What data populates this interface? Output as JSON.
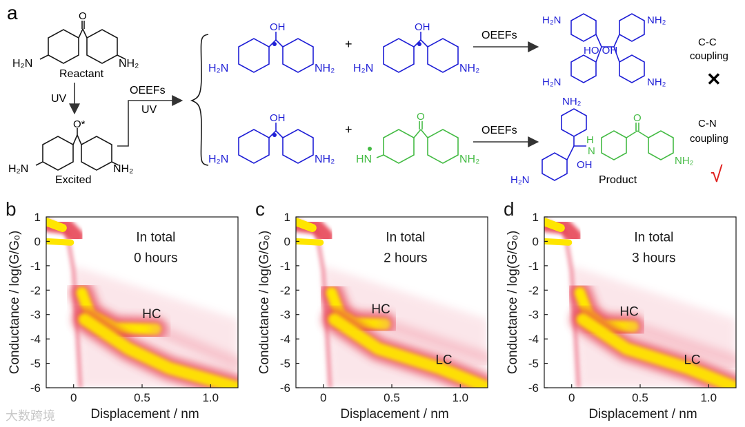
{
  "scheme": {
    "panel_label": "a",
    "reactant": {
      "left_group": "H₂N",
      "right_group": "NH₂",
      "carbonyl": "O",
      "caption": "Reactant"
    },
    "uv_step": "UV",
    "excited": {
      "left_group": "H₂N",
      "right_group": "NH₂",
      "carbonyl": "O*",
      "caption": "Excited"
    },
    "split": {
      "top": "OEEFs",
      "bottom": "UV"
    },
    "radical": {
      "left_group": "H₂N",
      "right_group": "NH₂",
      "oh": "OH"
    },
    "n_radical": {
      "left_group": "HN",
      "right_group": "NH₂",
      "carbonyl": "O"
    },
    "plus": "+",
    "oeefs": "OEEFs",
    "cc_dimer": {
      "top_left": "H₂N",
      "top_right": "NH₂",
      "bottom_left": "H₂N",
      "bottom_right": "NH₂",
      "oh": "HO OH"
    },
    "cn_product": {
      "top": "NH₂",
      "left": "H₂N",
      "nh": "N",
      "h": "H",
      "oh": "OH",
      "right": "NH₂",
      "carbonyl": "O",
      "caption": "Product"
    },
    "cc_outcome": {
      "line1": "C-C",
      "line2": "coupling",
      "mark": "✕"
    },
    "cn_outcome": {
      "line1": "C-N",
      "line2": "coupling",
      "mark": "√"
    },
    "colors": {
      "radical": "#1f1fd6",
      "amine_radical": "#44bb44",
      "check": "#e0211f",
      "ink": "#1a1a1a"
    }
  },
  "chart_data": [
    {
      "type": "heatmap",
      "panel_label": "b",
      "xlabel": "Displacement / nm",
      "ylabel": "Conductance / log(G/G₀)",
      "xlim": [
        -0.2,
        1.2
      ],
      "ylim": [
        -6,
        1
      ],
      "xticks": [
        "0",
        "0.5",
        "1.0"
      ],
      "yticks": [
        "1",
        "0",
        "-1",
        "-2",
        "-3",
        "-4",
        "-5",
        "-6"
      ],
      "annotation": [
        "In total",
        "0 hours"
      ],
      "features": [
        {
          "label": "HC",
          "x": 0.6,
          "y": -3.6
        },
        {
          "label": "",
          "x": 0.7,
          "y": -5.2
        }
      ]
    },
    {
      "type": "heatmap",
      "panel_label": "c",
      "xlabel": "Displacement / nm",
      "ylabel": "Conductance / log(G/G₀)",
      "xlim": [
        -0.2,
        1.2
      ],
      "ylim": [
        -6,
        1
      ],
      "xticks": [
        "0",
        "0.5",
        "1.0"
      ],
      "yticks": [
        "1",
        "0",
        "-1",
        "-2",
        "-3",
        "-4",
        "-5",
        "-6"
      ],
      "annotation": [
        "In total",
        "2 hours"
      ],
      "features": [
        {
          "label": "HC",
          "x": 0.45,
          "y": -3.4
        },
        {
          "label": "LC",
          "x": 0.85,
          "y": -5.2
        }
      ]
    },
    {
      "type": "heatmap",
      "panel_label": "d",
      "xlabel": "Displacement / nm",
      "ylabel": "Conductance / log(G/G₀)",
      "xlim": [
        -0.2,
        1.2
      ],
      "ylim": [
        -6,
        1
      ],
      "xticks": [
        "0",
        "0.5",
        "1.0"
      ],
      "yticks": [
        "1",
        "0",
        "-1",
        "-2",
        "-3",
        "-4",
        "-5",
        "-6"
      ],
      "annotation": [
        "In total",
        "3 hours"
      ],
      "features": [
        {
          "label": "HC",
          "x": 0.45,
          "y": -3.5
        },
        {
          "label": "LC",
          "x": 0.85,
          "y": -5.2
        }
      ]
    }
  ],
  "watermark": "大数跨境"
}
